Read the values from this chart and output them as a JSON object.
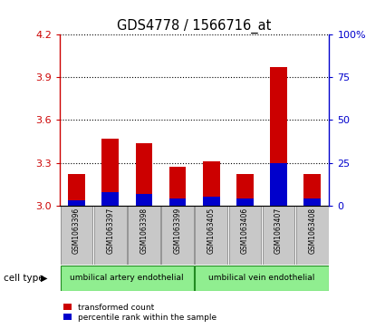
{
  "title": "GDS4778 / 1566716_at",
  "samples": [
    "GSM1063396",
    "GSM1063397",
    "GSM1063398",
    "GSM1063399",
    "GSM1063405",
    "GSM1063406",
    "GSM1063407",
    "GSM1063408"
  ],
  "transformed_counts": [
    3.22,
    3.47,
    3.44,
    3.27,
    3.31,
    3.22,
    3.97,
    3.22
  ],
  "percentile_ranks": [
    3,
    8,
    7,
    4,
    5,
    4,
    25,
    4
  ],
  "ylim_left": [
    3.0,
    4.2
  ],
  "ylim_right": [
    0,
    100
  ],
  "yticks_left": [
    3.0,
    3.3,
    3.6,
    3.9,
    4.2
  ],
  "yticks_right": [
    0,
    25,
    50,
    75,
    100
  ],
  "ytick_labels_right": [
    "0",
    "25",
    "50",
    "75",
    "100%"
  ],
  "bar_color_red": "#CC0000",
  "bar_color_blue": "#0000CC",
  "bar_width": 0.5,
  "background_color": "#ffffff",
  "left_axis_color": "#CC0000",
  "right_axis_color": "#0000CC",
  "cell_type_label": "cell type",
  "legend_items": [
    "transformed count",
    "percentile rank within the sample"
  ],
  "group1_label": "umbilical artery endothelial",
  "group2_label": "umbilical vein endothelial",
  "green_color": "#90EE90",
  "gray_sample_color": "#C8C8C8",
  "gray_sample_edge": "#888888"
}
